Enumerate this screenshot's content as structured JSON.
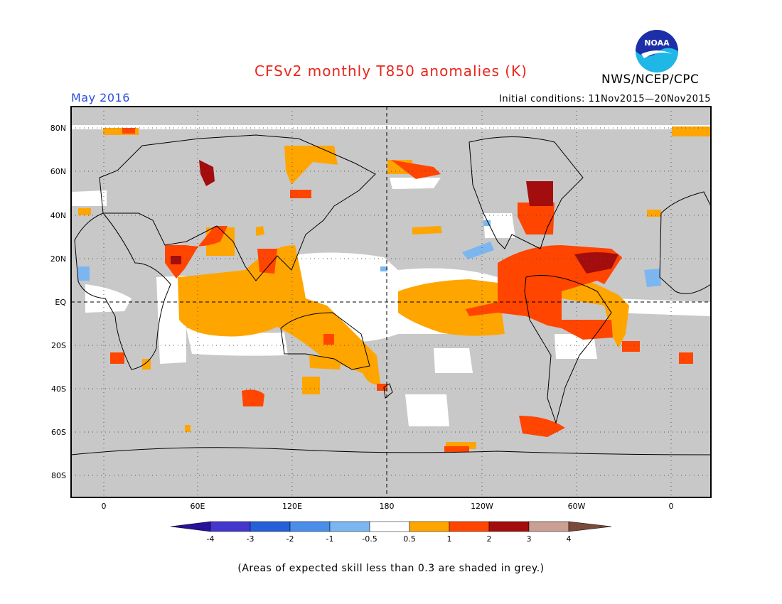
{
  "title": "CFSv2 monthly T850 anomalies (K)",
  "agency": "NWS/NCEP/CPC",
  "logo_text": "NOAA",
  "valid_date": "May 2016",
  "initial_conditions": "Initial conditions: 11Nov2015—20Nov2015",
  "footnote": "(Areas of expected skill less than 0.3 are shaded in grey.)",
  "map": {
    "lat_labels": [
      "80N",
      "60N",
      "40N",
      "20N",
      "EQ",
      "20S",
      "40S",
      "60S",
      "80S"
    ],
    "lon_labels": [
      "0",
      "60E",
      "120E",
      "180",
      "120W",
      "60W",
      "0"
    ],
    "grey_color": "#c8c8c8",
    "regions": [
      {
        "label": "tropical-indian-ocean",
        "level": "0.5-1"
      },
      {
        "label": "maritime-continent-australia",
        "level": "0.5-1"
      },
      {
        "label": "central-eastern-pacific-enso",
        "level": "0.5-1"
      },
      {
        "label": "eastern-pacific",
        "level": "1-2"
      },
      {
        "label": "caribbean-gulf",
        "level": "2-3"
      },
      {
        "label": "northern-south-america",
        "level": "1-2"
      },
      {
        "label": "eastern-north-america",
        "level": "2-3"
      },
      {
        "label": "arabia-north-india",
        "level": "1-2"
      },
      {
        "label": "ural-siberia",
        "level": "2-3"
      },
      {
        "label": "southern-ocean-indian",
        "level": "1-2"
      },
      {
        "label": "southern-ocean-pacific",
        "level": "1-2"
      },
      {
        "label": "north-pacific-alaska",
        "level": "1-2"
      }
    ]
  },
  "legend": {
    "tick_labels": [
      "-4",
      "-3",
      "-2",
      "-1",
      "-0.5",
      "0.5",
      "1",
      "2",
      "3",
      "4"
    ],
    "colors": [
      "#2a1199",
      "#4438cc",
      "#2560d8",
      "#4a8eea",
      "#7cb6f0",
      "#ffffff",
      "#ffa500",
      "#ff4500",
      "#a30d0d",
      "#c9a093",
      "#7b4a3a"
    ]
  }
}
